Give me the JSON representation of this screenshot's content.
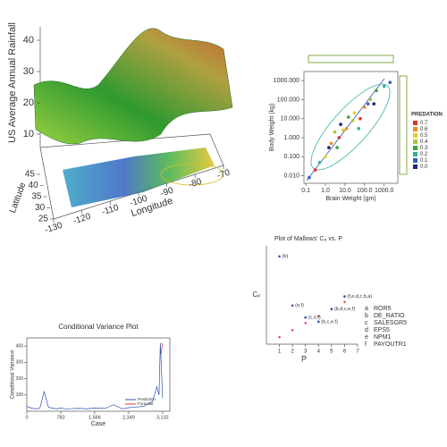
{
  "chart_data": [
    {
      "type": "surface3d",
      "zlabel": "US Average Annual Rainfall",
      "zlim": [
        10,
        40
      ],
      "zticks": [
        10,
        20,
        30,
        40
      ],
      "ylabel": "Latitude",
      "ylim": [
        25,
        45
      ],
      "yticks": [
        25,
        30,
        35,
        40,
        45
      ],
      "xlabel": "Longitude",
      "xlim": [
        -130,
        -70
      ],
      "xticks": [
        -130,
        -120,
        -110,
        -100,
        -90,
        -80,
        -70
      ]
    },
    {
      "type": "scatter",
      "log": true,
      "xlabel": "Brain Weight (gm)",
      "ylabel": "Body Weight (kg)",
      "xlim": [
        0.08,
        5000
      ],
      "ylim": [
        0.004,
        3000
      ],
      "xticks": [
        {
          "value": 0.1,
          "label": "0.1"
        },
        {
          "value": 1,
          "label": "1.0"
        },
        {
          "value": 10,
          "label": "10.0"
        },
        {
          "value": 100,
          "label": "100.0"
        },
        {
          "value": 1000,
          "label": "1000.0"
        }
      ],
      "yticks": [
        {
          "value": 0.01,
          "label": "0.010"
        },
        {
          "value": 0.1,
          "label": "0.100"
        },
        {
          "value": 1,
          "label": "1.000"
        },
        {
          "value": 10,
          "label": "10.000"
        },
        {
          "value": 100,
          "label": "100.000"
        },
        {
          "value": 1000,
          "label": "1000.000"
        }
      ],
      "legend_title": "PREDATION",
      "series": [
        {
          "name": "0.7",
          "color": "#e0302a",
          "x": [
            0.3,
            5,
            60
          ],
          "values": [
            0.02,
            1,
            10
          ]
        },
        {
          "name": "0.6",
          "color": "#f08a24",
          "x": [
            2,
            12,
            100
          ],
          "values": [
            0.5,
            3,
            40
          ]
        },
        {
          "name": "0.5",
          "color": "#e8d020",
          "x": [
            1,
            8,
            30
          ],
          "values": [
            0.1,
            2.5,
            20
          ]
        },
        {
          "name": "0.4",
          "color": "#a8c830",
          "x": [
            3,
            25,
            200
          ],
          "values": [
            2,
            8,
            100
          ]
        },
        {
          "name": "0.3",
          "color": "#3aa83a",
          "x": [
            4,
            15,
            400
          ],
          "values": [
            0.3,
            12,
            300
          ]
        },
        {
          "name": "0.2",
          "color": "#30b0a0",
          "x": [
            0.5,
            50,
            1000
          ],
          "values": [
            0.05,
            3,
            500
          ]
        },
        {
          "name": "0.1",
          "color": "#3060c0",
          "x": [
            0.15,
            150,
            2000
          ],
          "values": [
            0.008,
            60,
            800
          ]
        },
        {
          "name": "0.0",
          "color": "#202080",
          "x": [
            1.5,
            6,
            300
          ],
          "values": [
            0.3,
            5,
            60
          ]
        }
      ]
    },
    {
      "type": "cp-plot",
      "title": "Plot of Mallows' Cₚ vs. P",
      "xlabel": "P",
      "ylabel": "Cₚ",
      "xlim": [
        0,
        7
      ],
      "ylim": [
        0,
        14
      ],
      "xticks": [
        1,
        2,
        3,
        4,
        5,
        6,
        7
      ],
      "x": [
        1,
        2,
        3,
        4,
        5,
        6
      ],
      "values": [
        12.5,
        5.5,
        3.8,
        3.2,
        5,
        6.8
      ],
      "point_labels": [
        "(b)",
        "(e,f)",
        "(c,e,f)",
        "(b,c,e,f)",
        "(b,d,c,e,f)",
        "(f,e,d,c,b,a)"
      ],
      "reference": {
        "color": "#e03030",
        "x": [
          1,
          2,
          3,
          4,
          5,
          6
        ],
        "values": [
          1,
          2,
          3,
          4,
          5,
          6
        ]
      },
      "key": [
        {
          "code": "a",
          "name": "ROR5"
        },
        {
          "code": "b",
          "name": "DE_RATIO"
        },
        {
          "code": "c",
          "name": "SALESGR5"
        },
        {
          "code": "d",
          "name": "EPS5"
        },
        {
          "code": "e",
          "name": "NPM1"
        },
        {
          "code": "f",
          "name": "PAYOUTR1"
        }
      ]
    },
    {
      "type": "line",
      "title": "Conditional Variance Plot",
      "xlabel": "Case",
      "ylabel": "Conditional Variance",
      "xlim": [
        0,
        3300
      ],
      "ylim": [
        0,
        450
      ],
      "xticks": [
        0,
        783,
        {
          "value": 1566,
          "label": "1,566"
        },
        {
          "value": 2349,
          "label": "2,349"
        },
        {
          "value": 3132,
          "label": "3,132"
        }
      ],
      "yticks": [
        100,
        200,
        300,
        400
      ],
      "series": [
        {
          "name": "Prediction",
          "color": "#3050b0",
          "x": [
            0,
            100,
            200,
            300,
            400,
            500,
            600,
            700,
            783,
            900,
            1000,
            1200,
            1400,
            1566,
            1800,
            2000,
            2200,
            2349,
            2500,
            2700,
            2900,
            3000,
            3050,
            3080,
            3100,
            3132
          ],
          "values": [
            30,
            20,
            15,
            18,
            120,
            25,
            18,
            15,
            20,
            14,
            16,
            18,
            15,
            20,
            17,
            40,
            15,
            22,
            25,
            30,
            60,
            150,
            100,
            420,
            300,
            80
          ]
        },
        {
          "name": "Forecast",
          "color": "#e03030",
          "x": [
            3100,
            3132
          ],
          "values": [
            350,
            420
          ]
        }
      ]
    }
  ]
}
